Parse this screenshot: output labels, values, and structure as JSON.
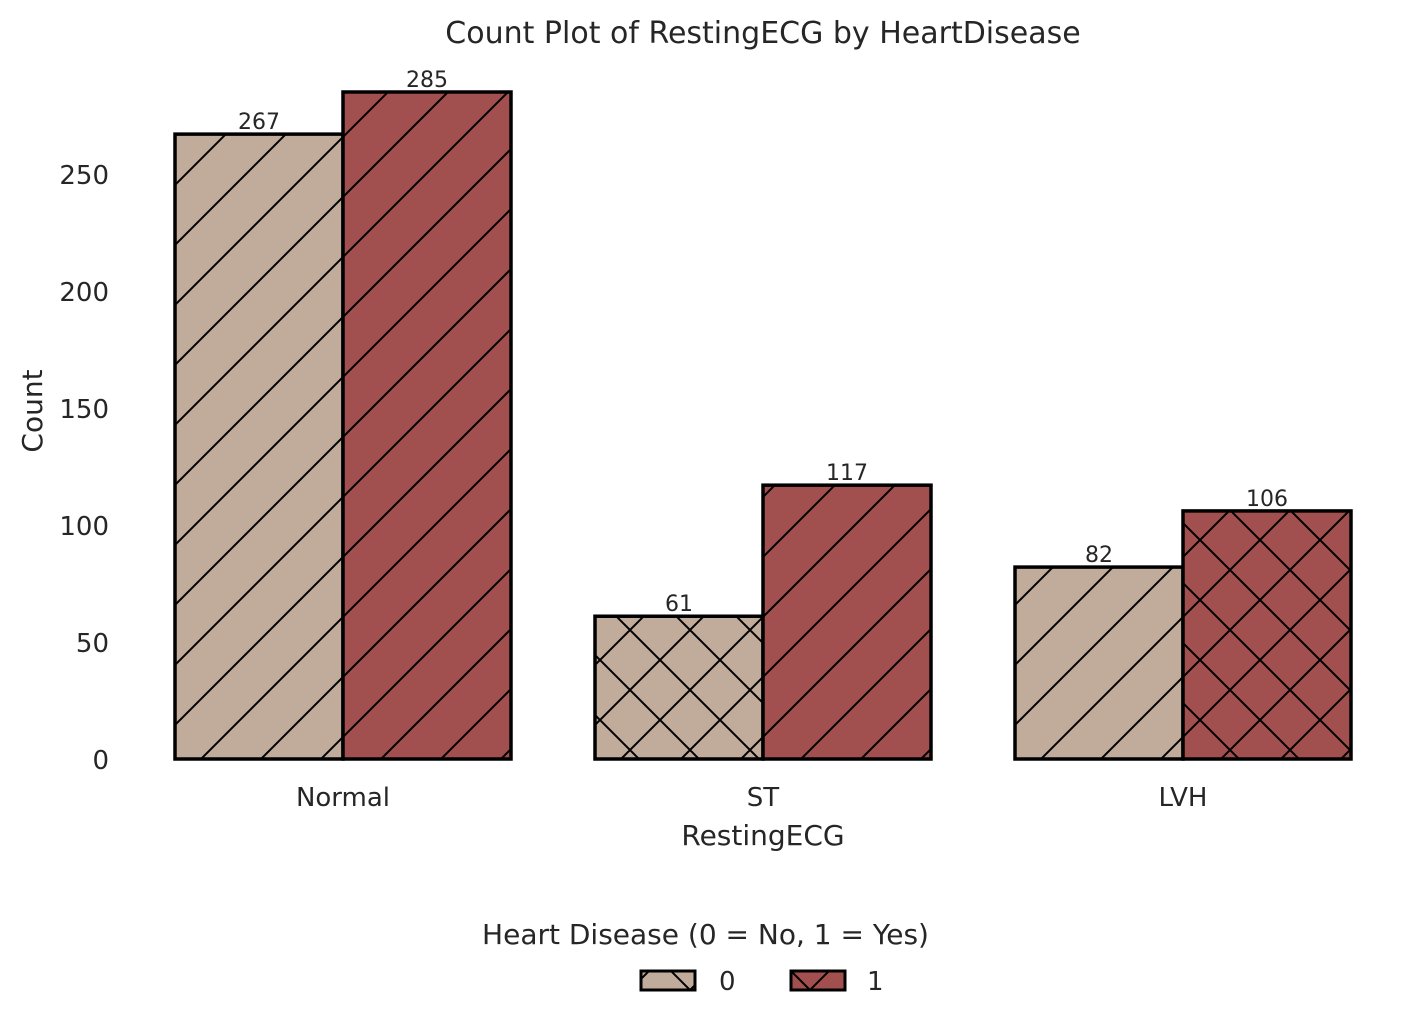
{
  "chart_data": {
    "type": "bar",
    "title": "Count Plot of RestingECG by HeartDisease",
    "xlabel": "RestingECG",
    "ylabel": "Count",
    "categories": [
      "Normal",
      "ST",
      "LVH"
    ],
    "series": [
      {
        "name": "0",
        "values": [
          267,
          61,
          82
        ],
        "color": "#c1ab9b"
      },
      {
        "name": "1",
        "values": [
          285,
          117,
          106
        ],
        "color": "#a14f4f"
      }
    ],
    "hatches": [
      [
        "diagonal",
        "diagonal"
      ],
      [
        "cross",
        "diagonal"
      ],
      [
        "diagonal",
        "cross"
      ]
    ],
    "yticks": [
      0,
      50,
      100,
      150,
      200,
      250
    ],
    "ylim": [
      0,
      285
    ],
    "legend": {
      "title": "Heart Disease (0 = No, 1 = Yes)",
      "placement": "bottom-center",
      "entries": [
        "0",
        "1"
      ]
    },
    "grid": false
  }
}
